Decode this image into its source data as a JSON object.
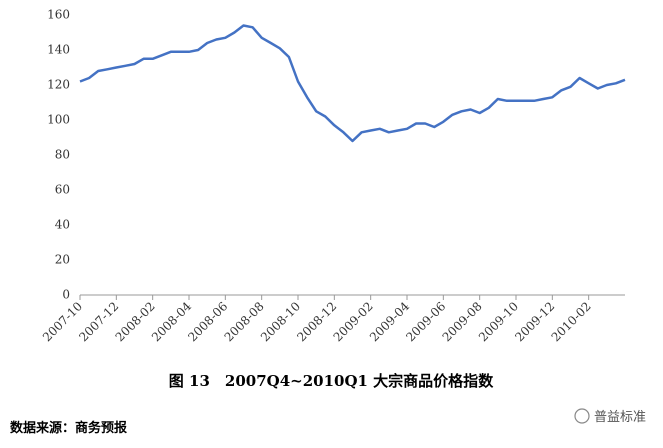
{
  "chart_data": {
    "type": "line",
    "title": "图 13　2007Q4~2010Q1 大宗商品价格指数",
    "source": "数据来源：商务预报",
    "watermark": "普益标准",
    "categories": [
      "2007-10",
      null,
      null,
      null,
      "2007-12",
      null,
      null,
      null,
      "2008-02",
      null,
      null,
      null,
      "2008-04",
      null,
      null,
      null,
      "2008-06",
      null,
      null,
      null,
      "2008-08",
      null,
      null,
      null,
      "2008-10",
      null,
      null,
      null,
      "2008-12",
      null,
      null,
      null,
      "2009-02",
      null,
      null,
      null,
      "2009-04",
      null,
      null,
      null,
      "2009-06",
      null,
      null,
      null,
      "2009-08",
      null,
      null,
      null,
      "2009-10",
      null,
      null,
      null,
      "2009-12",
      null,
      null,
      null,
      "2010-02",
      null,
      null,
      null,
      null
    ],
    "values": [
      122,
      124,
      128,
      129,
      130,
      131,
      132,
      135,
      135,
      137,
      139,
      139,
      139,
      140,
      144,
      146,
      147,
      150,
      154,
      153,
      147,
      144,
      141,
      136,
      122,
      113,
      105,
      102,
      97,
      93,
      88,
      93,
      94,
      95,
      93,
      94,
      95,
      98,
      98,
      96,
      99,
      103,
      105,
      106,
      104,
      107,
      112,
      111,
      111,
      111,
      111,
      112,
      113,
      117,
      119,
      124,
      121,
      118,
      120,
      121,
      123
    ],
    "color": "#4472c4",
    "ylim": [
      0,
      160
    ],
    "yticks": [
      0,
      20,
      40,
      60,
      80,
      100,
      120,
      140,
      160
    ]
  }
}
